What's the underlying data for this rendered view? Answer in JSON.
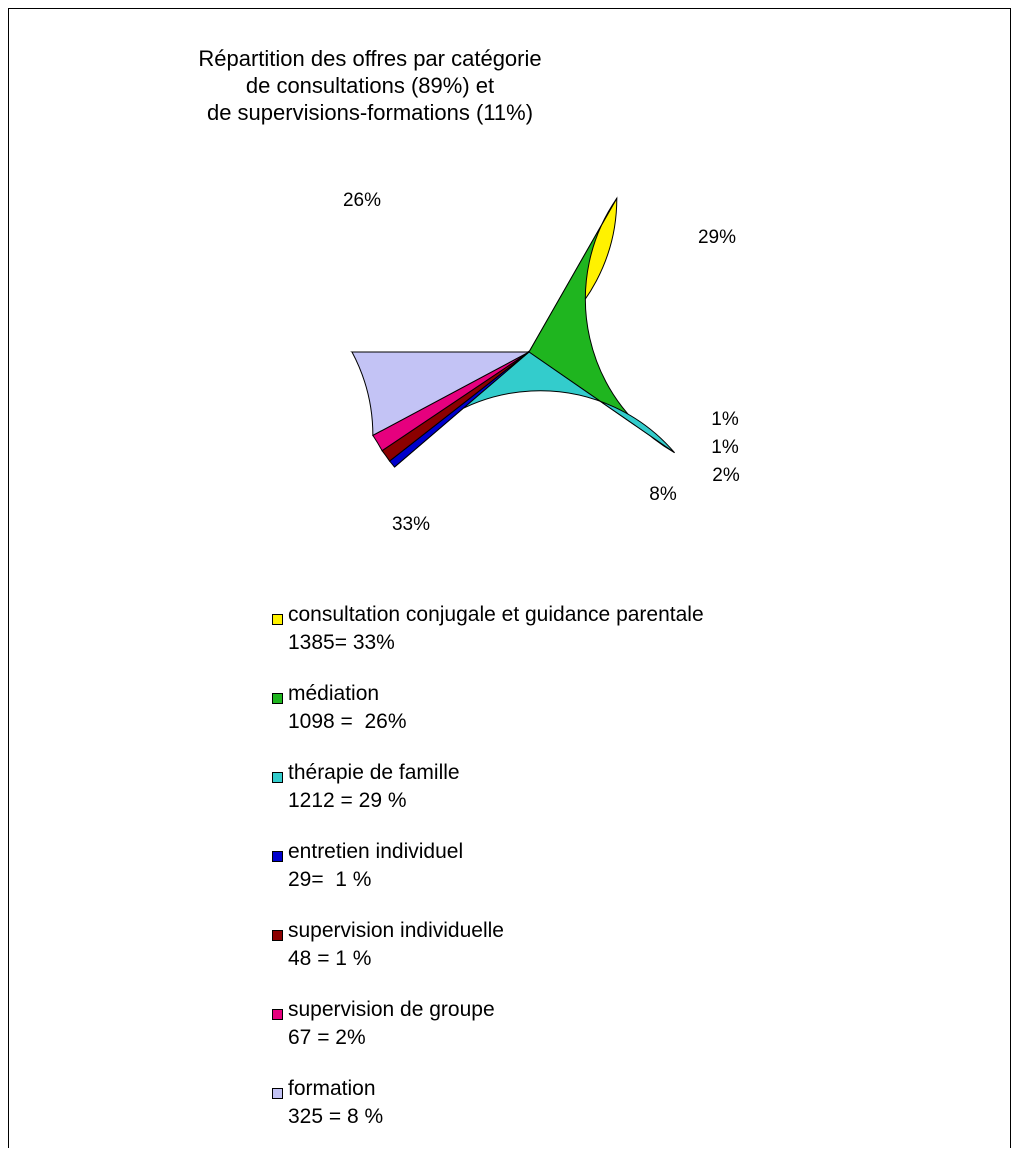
{
  "chart_data": {
    "type": "pie",
    "title": [
      "Répartition des offres par catégorie",
      "de consultations (89%) et",
      "de supervisions-formations (11%)"
    ],
    "slices": [
      {
        "name": "consultation conjugale et guidance parentale",
        "value": 1385,
        "percent_label": "33%",
        "legend_value": "1385= 33%",
        "color": "#FFF200"
      },
      {
        "name": "médiation",
        "value": 1098,
        "percent_label": "26%",
        "legend_value": "1098 =  26%",
        "color": "#1FB51F"
      },
      {
        "name": "thérapie de famille",
        "value": 1212,
        "percent_label": "29%",
        "legend_value": "1212 = 29 %",
        "color": "#33CCCC"
      },
      {
        "name": "entretien individuel",
        "value": 29,
        "percent_label": "1%",
        "legend_value": "29=  1 %",
        "color": "#0000CC"
      },
      {
        "name": "supervision individuelle",
        "value": 48,
        "percent_label": "1%",
        "legend_value": "48 = 1 %",
        "color": "#8B0000"
      },
      {
        "name": "supervision de groupe",
        "value": 67,
        "percent_label": "2%",
        "legend_value": "67 = 2%",
        "color": "#E6007E"
      },
      {
        "name": "formation",
        "value": 325,
        "percent_label": "8%",
        "legend_value": "325 = 8 %",
        "color": "#C3C3F5"
      }
    ],
    "legend_placement": "bottom"
  }
}
